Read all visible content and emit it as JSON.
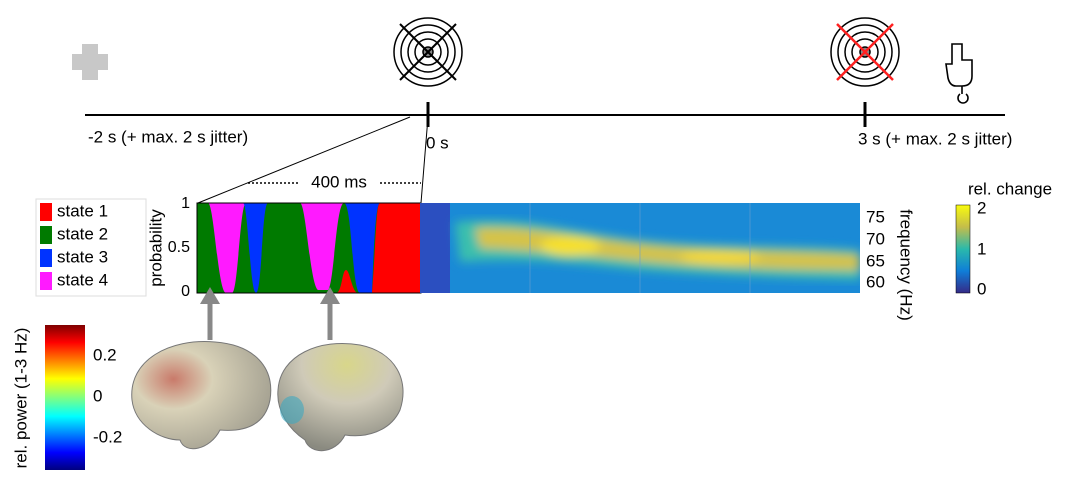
{
  "timeline": {
    "start_label": "-2 s (+ max. 2 s jitter)",
    "zero_label": "0 s",
    "end_label": "3 s (+ max. 2 s jitter)",
    "window_label": "400 ms"
  },
  "legend": {
    "items": [
      {
        "label": "state 1",
        "color": "#ff0000"
      },
      {
        "label": "state 2",
        "color": "#007a00"
      },
      {
        "label": "state 3",
        "color": "#0033ff"
      },
      {
        "label": "state 4",
        "color": "#ff1aff"
      }
    ]
  },
  "probability_axis": {
    "label": "probability",
    "ticks": [
      "1",
      "0.5",
      "0"
    ]
  },
  "frequency_axis": {
    "label": "frequency (Hz)",
    "ticks": [
      "75",
      "70",
      "65",
      "60"
    ]
  },
  "change_colorbar": {
    "label": "rel. change",
    "ticks": [
      "2",
      "1",
      "0"
    ]
  },
  "power_colorbar": {
    "label": "rel. power (1-3 Hz)",
    "ticks": [
      "0.2",
      "0",
      "-0.2"
    ]
  }
}
